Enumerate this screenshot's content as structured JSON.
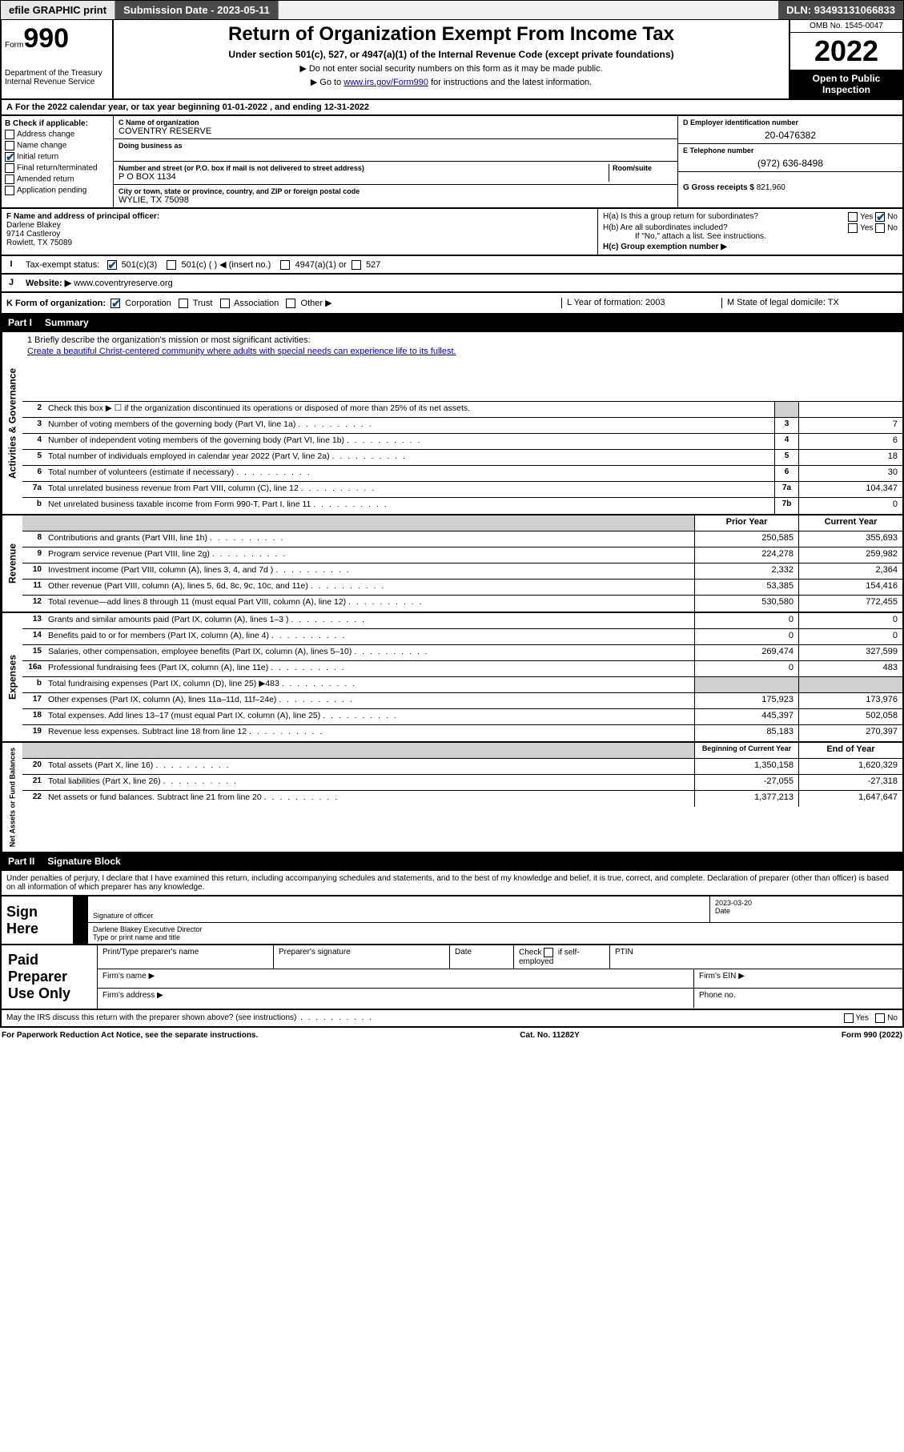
{
  "topbar": {
    "efile": "efile GRAPHIC print",
    "submission_label": "Submission Date - ",
    "submission_date": "2023-05-11",
    "dln_label": "DLN: ",
    "dln": "93493131066833"
  },
  "header": {
    "form_prefix": "Form",
    "form_number": "990",
    "dept": "Department of the Treasury\nInternal Revenue Service",
    "title": "Return of Organization Exempt From Income Tax",
    "sub1": "Under section 501(c), 527, or 4947(a)(1) of the Internal Revenue Code (except private foundations)",
    "sub2": "▶ Do not enter social security numbers on this form as it may be made public.",
    "sub3_prefix": "▶ Go to ",
    "sub3_link": "www.irs.gov/Form990",
    "sub3_suffix": " for instructions and the latest information.",
    "omb": "OMB No. 1545-0047",
    "year": "2022",
    "open": "Open to Public Inspection"
  },
  "row_a": "For the 2022 calendar year, or tax year beginning 01-01-2022   , and ending 12-31-2022",
  "section_b": {
    "label": "B Check if applicable:",
    "items": [
      {
        "text": "Address change",
        "checked": false
      },
      {
        "text": "Name change",
        "checked": false
      },
      {
        "text": "Initial return",
        "checked": true
      },
      {
        "text": "Final return/terminated",
        "checked": false
      },
      {
        "text": "Amended return",
        "checked": false
      },
      {
        "text": "Application pending",
        "checked": false
      }
    ]
  },
  "section_c": {
    "name_label": "C Name of organization",
    "name": "COVENTRY RESERVE",
    "dba_label": "Doing business as",
    "dba": "",
    "addr_label": "Number and street (or P.O. box if mail is not delivered to street address)",
    "room_label": "Room/suite",
    "addr": "P O BOX 1134",
    "city_label": "City or town, state or province, country, and ZIP or foreign postal code",
    "city": "WYLIE, TX  75098"
  },
  "section_d": {
    "ein_label": "D Employer identification number",
    "ein": "20-0476382",
    "phone_label": "E Telephone number",
    "phone": "(972) 636-8498",
    "gross_label": "G Gross receipts $ ",
    "gross": "821,960"
  },
  "section_f": {
    "label": "F  Name and address of principal officer:",
    "name": "Darlene Blakey",
    "addr1": "9714 Castleroy",
    "addr2": "Rowlett, TX  75089"
  },
  "section_h": {
    "ha": "H(a)  Is this a group return for subordinates?",
    "ha_yes": "Yes",
    "ha_no": "No",
    "hb": "H(b)  Are all subordinates included?",
    "hb_yes": "Yes",
    "hb_no": "No",
    "hb_note": "If \"No,\" attach a list. See instructions.",
    "hc": "H(c)  Group exemption number ▶"
  },
  "row_i": {
    "label": "Tax-exempt status:",
    "opts": [
      "501(c)(3)",
      "501(c) (  ) ◀ (insert no.)",
      "4947(a)(1) or",
      "527"
    ]
  },
  "row_j": {
    "label": "Website: ▶",
    "val": "www.coventryreserve.org"
  },
  "row_k": {
    "left_label": "K Form of organization:",
    "opts": [
      "Corporation",
      "Trust",
      "Association",
      "Other ▶"
    ],
    "l": "L Year of formation: 2003",
    "m": "M State of legal domicile: TX"
  },
  "part1": {
    "num": "Part I",
    "title": "Summary"
  },
  "mission": {
    "label": "1  Briefly describe the organization's mission or most significant activities:",
    "text": "Create a beautiful Christ-centered community where adults with special needs can experience life to its fullest."
  },
  "gov_rows": [
    {
      "n": "2",
      "desc": "Check this box ▶ ☐  if the organization discontinued its operations or disposed of more than 25% of its net assets.",
      "box": "",
      "val": ""
    },
    {
      "n": "3",
      "desc": "Number of voting members of the governing body (Part VI, line 1a)",
      "box": "3",
      "val": "7"
    },
    {
      "n": "4",
      "desc": "Number of independent voting members of the governing body (Part VI, line 1b)",
      "box": "4",
      "val": "6"
    },
    {
      "n": "5",
      "desc": "Total number of individuals employed in calendar year 2022 (Part V, line 2a)",
      "box": "5",
      "val": "18"
    },
    {
      "n": "6",
      "desc": "Total number of volunteers (estimate if necessary)",
      "box": "6",
      "val": "30"
    },
    {
      "n": "7a",
      "desc": "Total unrelated business revenue from Part VIII, column (C), line 12",
      "box": "7a",
      "val": "104,347"
    },
    {
      "n": "b",
      "desc": "Net unrelated business taxable income from Form 990-T, Part I, line 11",
      "box": "7b",
      "val": "0"
    }
  ],
  "two_col_hdr": {
    "prior": "Prior Year",
    "current": "Current Year"
  },
  "rev_rows": [
    {
      "n": "8",
      "desc": "Contributions and grants (Part VIII, line 1h)",
      "prior": "250,585",
      "curr": "355,693"
    },
    {
      "n": "9",
      "desc": "Program service revenue (Part VIII, line 2g)",
      "prior": "224,278",
      "curr": "259,982"
    },
    {
      "n": "10",
      "desc": "Investment income (Part VIII, column (A), lines 3, 4, and 7d )",
      "prior": "2,332",
      "curr": "2,364"
    },
    {
      "n": "11",
      "desc": "Other revenue (Part VIII, column (A), lines 5, 6d, 8c, 9c, 10c, and 11e)",
      "prior": "53,385",
      "curr": "154,416"
    },
    {
      "n": "12",
      "desc": "Total revenue—add lines 8 through 11 (must equal Part VIII, column (A), line 12)",
      "prior": "530,580",
      "curr": "772,455"
    }
  ],
  "exp_rows": [
    {
      "n": "13",
      "desc": "Grants and similar amounts paid (Part IX, column (A), lines 1–3 )",
      "prior": "0",
      "curr": "0"
    },
    {
      "n": "14",
      "desc": "Benefits paid to or for members (Part IX, column (A), line 4)",
      "prior": "0",
      "curr": "0"
    },
    {
      "n": "15",
      "desc": "Salaries, other compensation, employee benefits (Part IX, column (A), lines 5–10)",
      "prior": "269,474",
      "curr": "327,599"
    },
    {
      "n": "16a",
      "desc": "Professional fundraising fees (Part IX, column (A), line 11e)",
      "prior": "0",
      "curr": "483"
    },
    {
      "n": "b",
      "desc": "Total fundraising expenses (Part IX, column (D), line 25) ▶483",
      "prior": "",
      "curr": "",
      "shade": true
    },
    {
      "n": "17",
      "desc": "Other expenses (Part IX, column (A), lines 11a–11d, 11f–24e)",
      "prior": "175,923",
      "curr": "173,976"
    },
    {
      "n": "18",
      "desc": "Total expenses. Add lines 13–17 (must equal Part IX, column (A), line 25)",
      "prior": "445,397",
      "curr": "502,058"
    },
    {
      "n": "19",
      "desc": "Revenue less expenses. Subtract line 18 from line 12",
      "prior": "85,183",
      "curr": "270,397"
    }
  ],
  "net_hdr": {
    "prior": "Beginning of Current Year",
    "current": "End of Year"
  },
  "net_rows": [
    {
      "n": "20",
      "desc": "Total assets (Part X, line 16)",
      "prior": "1,350,158",
      "curr": "1,620,329"
    },
    {
      "n": "21",
      "desc": "Total liabilities (Part X, line 26)",
      "prior": "-27,055",
      "curr": "-27,318"
    },
    {
      "n": "22",
      "desc": "Net assets or fund balances. Subtract line 21 from line 20",
      "prior": "1,377,213",
      "curr": "1,647,647"
    }
  ],
  "part2": {
    "num": "Part II",
    "title": "Signature Block"
  },
  "sig_decl": "Under penalties of perjury, I declare that I have examined this return, including accompanying schedules and statements, and to the best of my knowledge and belief, it is true, correct, and complete. Declaration of preparer (other than officer) is based on all information of which preparer has any knowledge.",
  "sign_here": "Sign Here",
  "sig_officer_label": "Signature of officer",
  "sig_date_label": "Date",
  "sig_date": "2023-03-20",
  "sig_name": "Darlene Blakey  Executive Director",
  "sig_name_label": "Type or print name and title",
  "paid_prep": "Paid Preparer Use Only",
  "prep": {
    "c1": "Print/Type preparer's name",
    "c2": "Preparer's signature",
    "c3": "Date",
    "c4a": "Check",
    "c4b": "if self-employed",
    "c5": "PTIN",
    "firm_name": "Firm's name   ▶",
    "firm_ein": "Firm's EIN ▶",
    "firm_addr": "Firm's address ▶",
    "phone": "Phone no."
  },
  "footer": {
    "q": "May the IRS discuss this return with the preparer shown above? (see instructions)",
    "yes": "Yes",
    "no": "No",
    "pra": "For Paperwork Reduction Act Notice, see the separate instructions.",
    "cat": "Cat. No. 11282Y",
    "form": "Form 990 (2022)"
  },
  "sidetabs": {
    "gov": "Activities & Governance",
    "rev": "Revenue",
    "exp": "Expenses",
    "net": "Net Assets or Fund Balances"
  },
  "colors": {
    "link": "#0000cc",
    "check": "#0050a0",
    "shade": "#d0d0d0"
  }
}
